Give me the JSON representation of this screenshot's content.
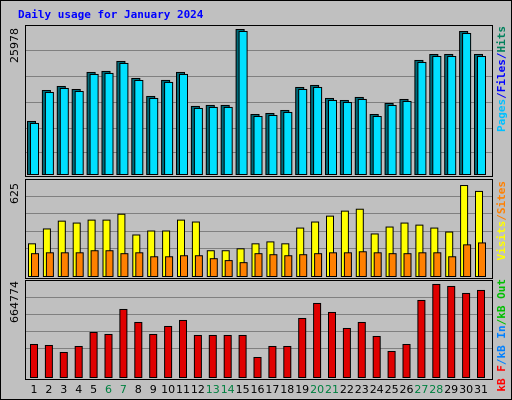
{
  "title": "Daily usage for January 2024",
  "chart_data": [
    {
      "type": "bar",
      "ylim": [
        0,
        25978
      ],
      "yticks": [
        25978
      ],
      "y_label": [
        {
          "text": "Pages",
          "color": "#00c0ff"
        },
        {
          "text": "/",
          "color": "#0000ff"
        },
        {
          "text": "Files",
          "color": "#0000ff"
        },
        {
          "text": "/",
          "color": "#0000ff"
        },
        {
          "text": "Hits",
          "color": "#00805c"
        }
      ],
      "series": [
        {
          "color": "#006a78",
          "values": [
            9500,
            15050,
            15770,
            15230,
            18280,
            18460,
            20250,
            17200,
            13980,
            16850,
            18280,
            12190,
            12370,
            12370,
            25978,
            10750,
            10930,
            11470,
            15590,
            15950,
            13620,
            13260,
            13800,
            10750,
            12720,
            13440,
            20430,
            21500,
            21500,
            25620,
            21500
          ]
        },
        {
          "color": "#00e0ff",
          "values": [
            9140,
            14690,
            15410,
            14870,
            17920,
            18100,
            19890,
            16840,
            13620,
            16490,
            17920,
            11830,
            12010,
            12010,
            25620,
            10390,
            10570,
            11110,
            15230,
            15590,
            13260,
            12900,
            13440,
            10390,
            12360,
            13080,
            20070,
            21140,
            21140,
            25260,
            21140
          ]
        }
      ]
    },
    {
      "type": "bar",
      "ylim": [
        0,
        625
      ],
      "yticks": [
        625
      ],
      "y_label": [
        {
          "text": "Visits",
          "color": "#ffff00"
        },
        {
          "text": "/",
          "color": "#ff8000"
        },
        {
          "text": "Sites",
          "color": "#ff8000"
        }
      ],
      "series": [
        {
          "color": "#ffff00",
          "values": [
            222,
            323,
            376,
            363,
            383,
            383,
            423,
            282,
            309,
            309,
            383,
            370,
            175,
            175,
            188,
            222,
            235,
            222,
            329,
            370,
            410,
            444,
            457,
            289,
            336,
            363,
            349,
            329,
            302,
            618,
            578
          ]
        },
        {
          "color": "#ff8000",
          "values": [
            155,
            161,
            161,
            161,
            175,
            175,
            155,
            161,
            134,
            134,
            141,
            141,
            121,
            108,
            94,
            155,
            148,
            141,
            148,
            155,
            161,
            161,
            168,
            161,
            155,
            155,
            161,
            161,
            134,
            215,
            228
          ]
        }
      ]
    },
    {
      "type": "bar",
      "ylim": [
        0,
        664774
      ],
      "yticks": [
        664774
      ],
      "y_label": [
        {
          "text": "kB F",
          "color": "#ff0000"
        },
        {
          "text": "/",
          "color": "#0080ff"
        },
        {
          "text": "kB In",
          "color": "#0080ff"
        },
        {
          "text": "/",
          "color": "#00c000"
        },
        {
          "text": "kB Out",
          "color": "#00c000"
        }
      ],
      "categories": [
        "1",
        "2",
        "3",
        "4",
        "5",
        "6",
        "7",
        "8",
        "9",
        "10",
        "11",
        "12",
        "13",
        "14",
        "15",
        "16",
        "17",
        "18",
        "19",
        "20",
        "21",
        "22",
        "23",
        "24",
        "25",
        "26",
        "27",
        "28",
        "29",
        "30",
        "31"
      ],
      "weekend_days": [
        5,
        6,
        12,
        13,
        19,
        20,
        26,
        27
      ],
      "weekend_color": "#008040",
      "series": [
        {
          "color": "#e00000",
          "values": [
            231000,
            224000,
            175000,
            217000,
            315000,
            301000,
            476000,
            385000,
            301000,
            357000,
            399000,
            294000,
            294000,
            294000,
            294000,
            140000,
            217000,
            217000,
            413000,
            518000,
            455000,
            343000,
            385000,
            287000,
            182000,
            231000,
            539000,
            651000,
            637000,
            588000,
            609000
          ]
        }
      ]
    }
  ]
}
